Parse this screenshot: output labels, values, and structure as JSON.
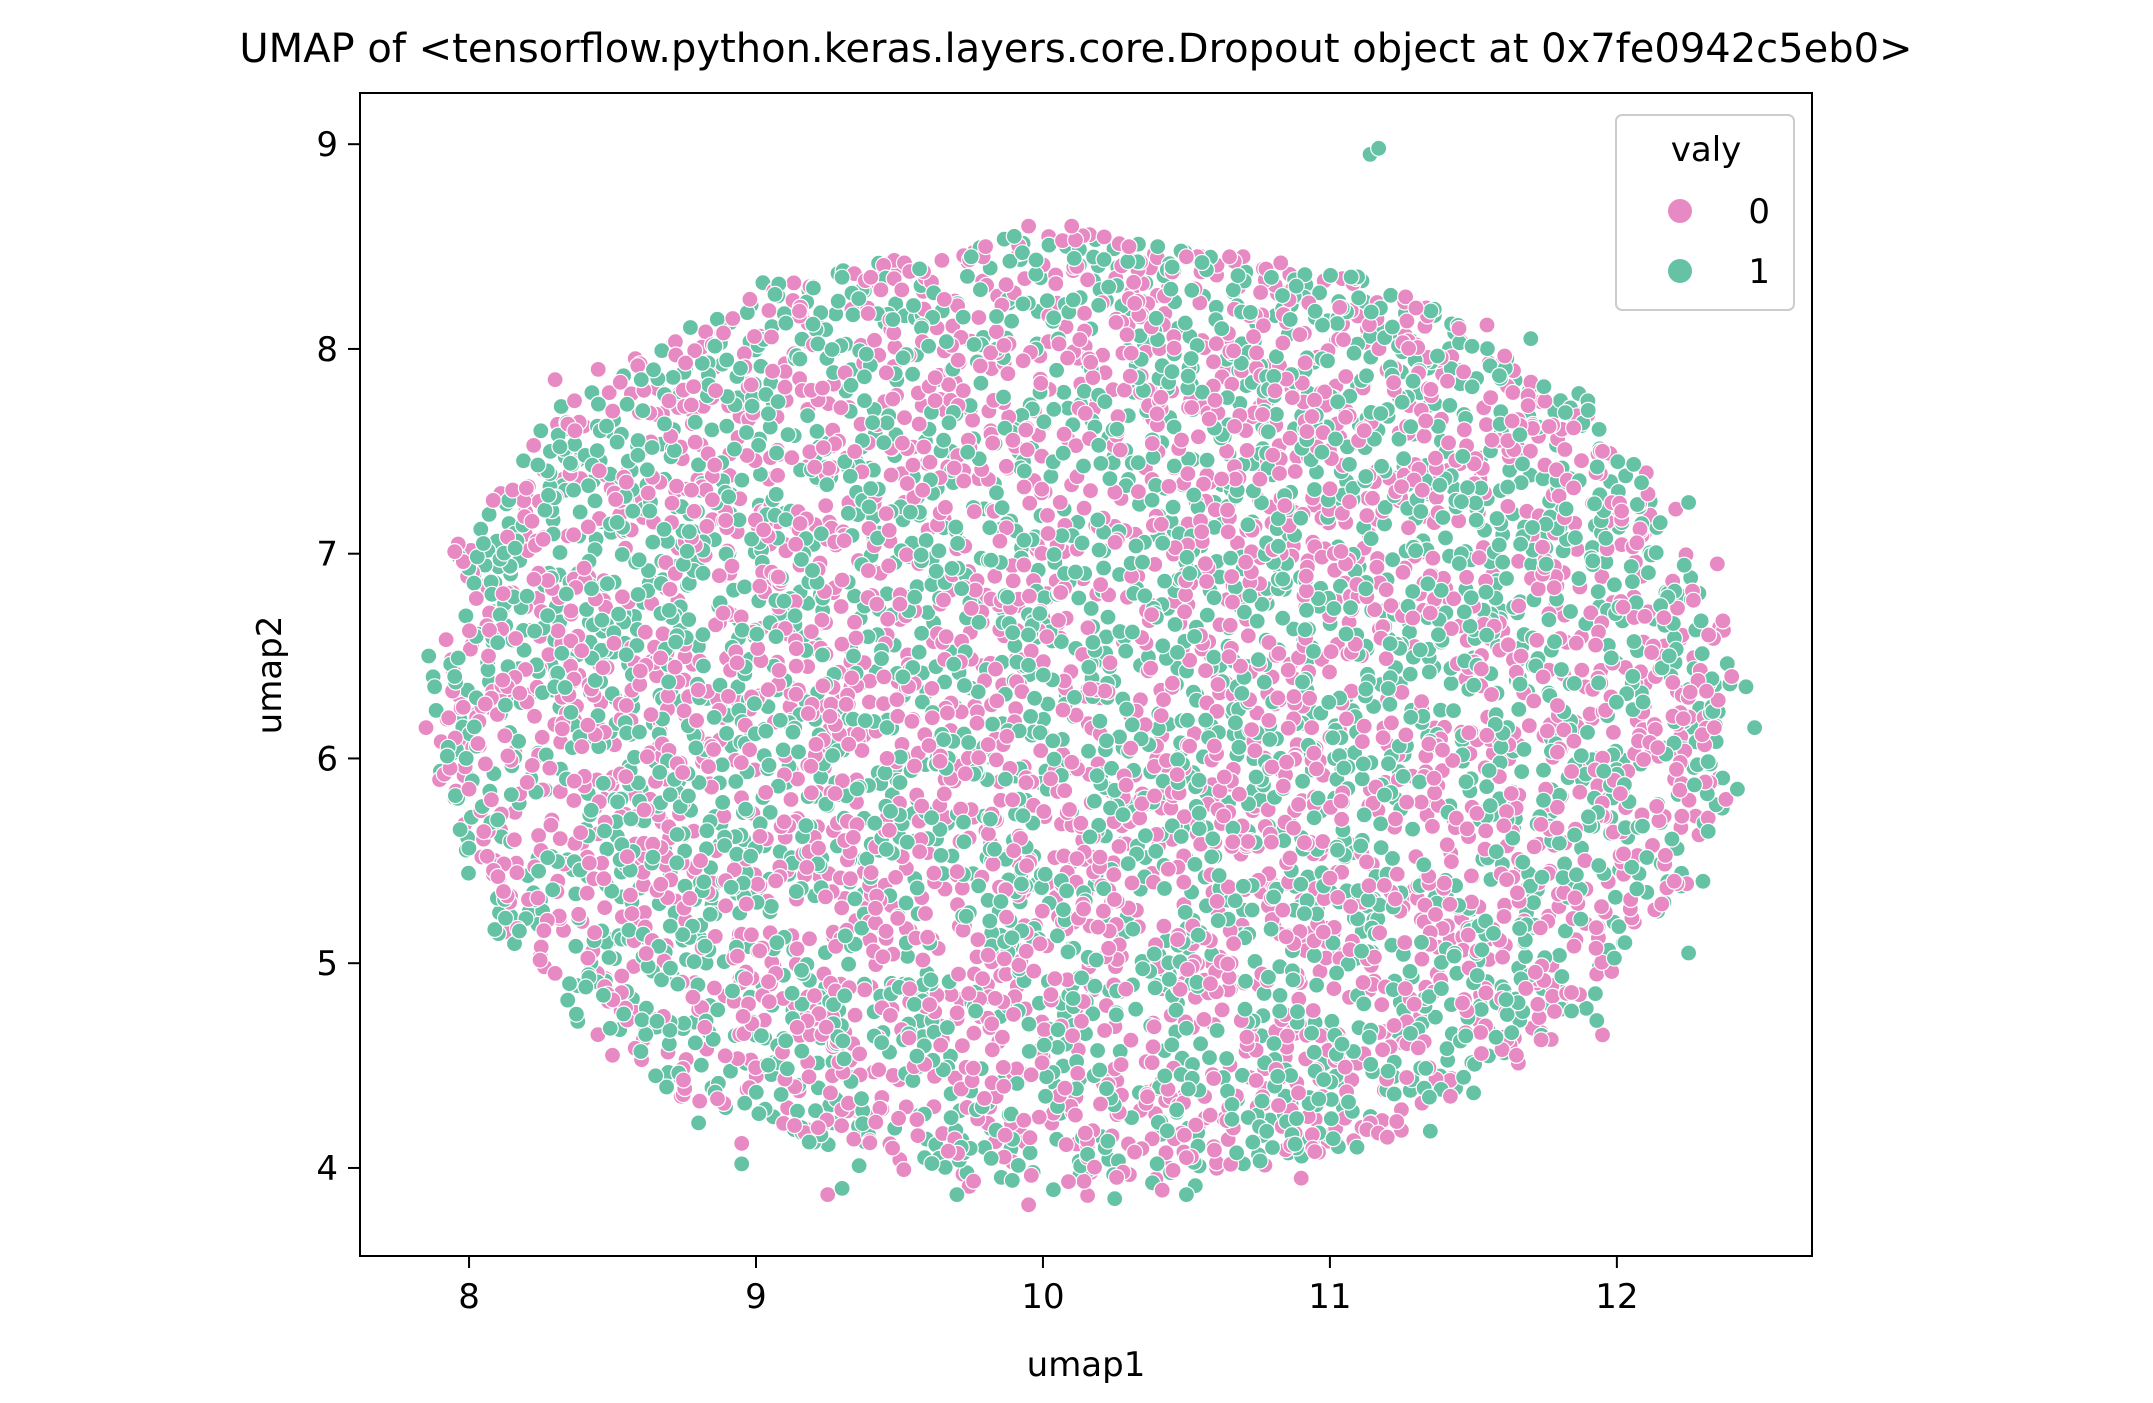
{
  "chart_data": {
    "type": "scatter",
    "title": "UMAP of <tensorflow.python.keras.layers.core.Dropout object at 0x7fe0942c5eb0>",
    "xlabel": "umap1",
    "ylabel": "umap2",
    "xlim": [
      7.62,
      12.68
    ],
    "ylim": [
      3.57,
      9.25
    ],
    "xticks": [
      8,
      9,
      10,
      11,
      12
    ],
    "yticks": [
      4,
      5,
      6,
      7,
      8,
      9
    ],
    "grid": false,
    "legend": {
      "title": "valy",
      "placement": "top-right",
      "entries": [
        {
          "label": "0",
          "color": "#e78ac3"
        },
        {
          "label": "1",
          "color": "#66c2a5"
        }
      ]
    },
    "cloud": {
      "center": [
        10.12,
        6.25
      ],
      "radius_x": 2.3,
      "radius_y": 2.4,
      "point_count_per_class": 3200
    },
    "series": [
      {
        "name": "0",
        "color": "#e78ac3",
        "points": [
          [
            7.85,
            6.15
          ],
          [
            7.92,
            6.58
          ],
          [
            7.95,
            7.01
          ],
          [
            8.2,
            7.32
          ],
          [
            8.3,
            7.85
          ],
          [
            8.45,
            7.9
          ],
          [
            9.4,
            8.35
          ],
          [
            9.8,
            8.5
          ],
          [
            9.95,
            8.6
          ],
          [
            10.1,
            8.6
          ],
          [
            10.3,
            8.5
          ],
          [
            10.5,
            8.45
          ],
          [
            10.65,
            8.45
          ],
          [
            11.3,
            8.2
          ],
          [
            11.45,
            8.1
          ],
          [
            11.95,
            7.5
          ],
          [
            12.35,
            6.95
          ],
          [
            12.4,
            6.4
          ],
          [
            12.38,
            5.8
          ],
          [
            12.2,
            5.4
          ],
          [
            11.95,
            4.65
          ],
          [
            11.65,
            4.55
          ],
          [
            11.42,
            4.35
          ],
          [
            11.2,
            4.15
          ],
          [
            10.9,
            3.95
          ],
          [
            10.5,
            4.05
          ],
          [
            9.95,
            3.82
          ],
          [
            9.25,
            3.87
          ],
          [
            8.95,
            4.12
          ],
          [
            8.5,
            4.55
          ],
          [
            8.3,
            4.95
          ],
          [
            8.12,
            5.35
          ],
          [
            8.0,
            5.85
          ],
          [
            7.98,
            6.25
          ]
        ]
      },
      {
        "name": "1",
        "color": "#66c2a5",
        "points": [
          [
            11.14,
            8.95
          ],
          [
            11.17,
            8.98
          ],
          [
            7.88,
            6.35
          ],
          [
            7.95,
            6.4
          ],
          [
            8.05,
            7.05
          ],
          [
            8.25,
            7.6
          ],
          [
            8.6,
            7.85
          ],
          [
            9.3,
            8.35
          ],
          [
            9.75,
            8.45
          ],
          [
            9.9,
            8.55
          ],
          [
            10.4,
            8.5
          ],
          [
            11.1,
            8.25
          ],
          [
            11.7,
            8.05
          ],
          [
            11.9,
            7.7
          ],
          [
            12.25,
            7.25
          ],
          [
            12.45,
            6.35
          ],
          [
            12.48,
            6.15
          ],
          [
            12.42,
            5.85
          ],
          [
            12.3,
            5.4
          ],
          [
            12.25,
            5.05
          ],
          [
            11.93,
            4.72
          ],
          [
            11.35,
            4.18
          ],
          [
            10.8,
            4.1
          ],
          [
            10.5,
            3.87
          ],
          [
            10.25,
            3.85
          ],
          [
            9.7,
            3.87
          ],
          [
            9.3,
            3.9
          ],
          [
            8.95,
            4.02
          ],
          [
            8.8,
            4.22
          ],
          [
            8.65,
            4.45
          ],
          [
            8.35,
            4.9
          ],
          [
            8.1,
            5.7
          ],
          [
            7.99,
            6.0
          ]
        ]
      }
    ]
  }
}
